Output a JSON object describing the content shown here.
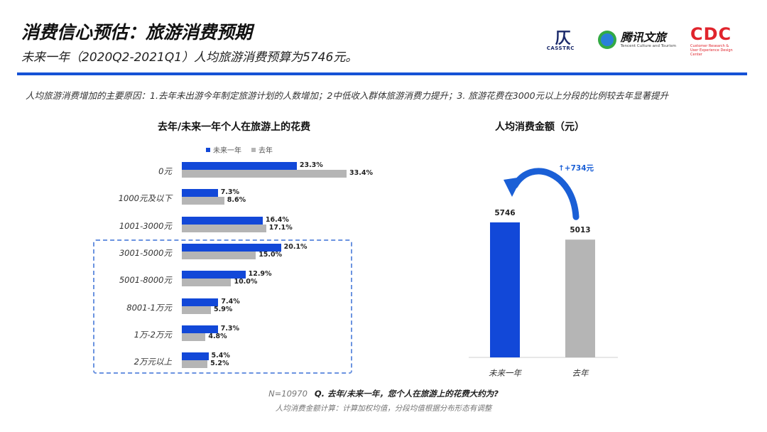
{
  "header": {
    "title": "消费信心预估：旅游消费预期",
    "subtitle": "未来一年（2020Q2-2021Q1）人均旅游消费预算为5746元。",
    "logos": {
      "casstrc_mark": "仄",
      "casstrc": "CASSTRC",
      "tencent_name": "腾讯文旅",
      "tencent_sub": "Tencent Culture and Tourism",
      "cdc": "CDC",
      "cdc_sub_1": "Customer Research &",
      "cdc_sub_2": "User Experience Design Center"
    }
  },
  "description": "人均旅游消费增加的主要原因：1.去年未出游今年制定旅游计划的人数增加；2中低收入群体旅游消费力提升；3. 旅游花费在3000元以上分段的比例较去年显著提升",
  "colors": {
    "future": "#1248d8",
    "last": "#b5b5b5",
    "accent": "#1552d6",
    "arrow": "#1a5fd6"
  },
  "chart_data": [
    {
      "type": "bar",
      "orientation": "horizontal",
      "title": "去年/未来一年个人在旅游上的花费",
      "legend_position": "top",
      "categories": [
        "0元",
        "1000元及以下",
        "1001-3000元",
        "3001-5000元",
        "5001-8000元",
        "8001-1万元",
        "1万-2万元",
        "2万元以上"
      ],
      "series": [
        {
          "name": "未来一年",
          "values": [
            23.3,
            7.3,
            16.4,
            20.1,
            12.9,
            7.4,
            7.3,
            5.4
          ],
          "labels": [
            "23.3%",
            "7.3%",
            "16.4%",
            "20.1%",
            "12.9%",
            "7.4%",
            "7.3%",
            "5.4%"
          ]
        },
        {
          "name": "去年",
          "values": [
            33.4,
            8.6,
            17.1,
            15.0,
            10.0,
            5.9,
            4.8,
            5.2
          ],
          "labels": [
            "33.4%",
            "8.6%",
            "17.1%",
            "15.0%",
            "10.0%",
            "5.9%",
            "4.8%",
            "5.2%"
          ]
        }
      ],
      "unit": "%",
      "highlight_categories": [
        "3001-5000元",
        "5001-8000元",
        "8001-1万元",
        "1万-2万元",
        "2万元以上"
      ]
    },
    {
      "type": "bar",
      "title": "人均消费金额（元）",
      "categories": [
        "未来一年",
        "去年"
      ],
      "values": [
        5746,
        5013
      ],
      "labels": [
        "5746",
        "5013"
      ],
      "annotation": "↑+734元",
      "ylim": [
        0,
        5746
      ]
    }
  ],
  "footer": {
    "sample": "N=10970",
    "question": "Q. 去年/未来一年，您个人在旅游上的花费大约为?",
    "note": "人均消费金额计算：计算加权均值，分段均值根据分布形态有调整"
  }
}
